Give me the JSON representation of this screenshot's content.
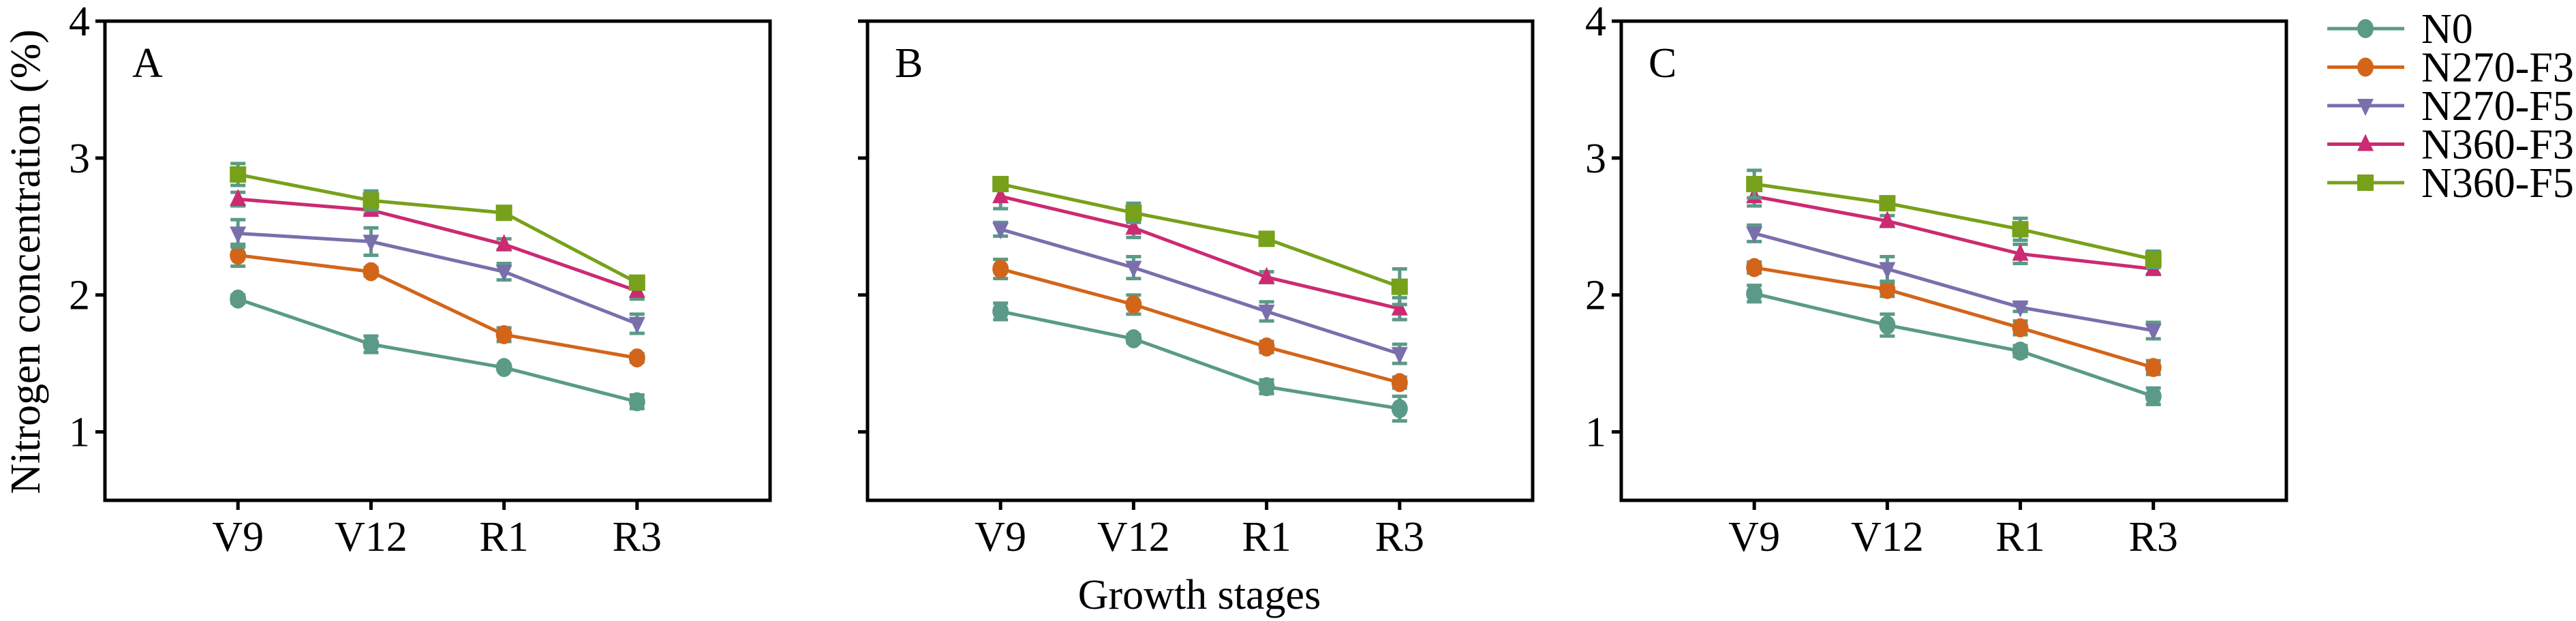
{
  "chart_data": [
    {
      "type": "line",
      "panel_label": "A",
      "categories": [
        "V9",
        "V12",
        "R1",
        "R3"
      ],
      "ylim": [
        0.5,
        4
      ],
      "yticks": [
        1,
        2,
        3,
        4
      ],
      "series": [
        {
          "name": "N0",
          "values": [
            1.97,
            1.64,
            1.47,
            1.22
          ],
          "errors": [
            0.03,
            0.06,
            0.02,
            0.05
          ]
        },
        {
          "name": "N270-F3",
          "values": [
            2.29,
            2.17,
            1.71,
            1.54
          ],
          "errors": [
            0.08,
            0.03,
            0.05,
            0.03
          ]
        },
        {
          "name": "N270-F5",
          "values": [
            2.45,
            2.39,
            2.17,
            1.79
          ],
          "errors": [
            0.1,
            0.1,
            0.06,
            0.07
          ]
        },
        {
          "name": "N360-F3",
          "values": [
            2.7,
            2.62,
            2.37,
            2.03
          ],
          "errors": [
            0.05,
            0.03,
            0.04,
            0.06
          ]
        },
        {
          "name": "N360-F5",
          "values": [
            2.88,
            2.69,
            2.6,
            2.09
          ],
          "errors": [
            0.08,
            0.07,
            0.03,
            0.03
          ]
        }
      ]
    },
    {
      "type": "line",
      "panel_label": "B",
      "categories": [
        "V9",
        "V12",
        "R1",
        "R3"
      ],
      "ylim": [
        0.5,
        4
      ],
      "yticks": [
        1,
        2,
        3,
        4
      ],
      "series": [
        {
          "name": "N0",
          "values": [
            1.88,
            1.68,
            1.33,
            1.17
          ],
          "errors": [
            0.06,
            0.03,
            0.05,
            0.09
          ]
        },
        {
          "name": "N270-F3",
          "values": [
            2.19,
            1.93,
            1.62,
            1.36
          ],
          "errors": [
            0.07,
            0.07,
            0.04,
            0.04
          ]
        },
        {
          "name": "N270-F5",
          "values": [
            2.48,
            2.2,
            1.88,
            1.57
          ],
          "errors": [
            0.05,
            0.08,
            0.07,
            0.07
          ]
        },
        {
          "name": "N360-F3",
          "values": [
            2.72,
            2.49,
            2.13,
            1.9
          ],
          "errors": [
            0.09,
            0.07,
            0.04,
            0.08
          ]
        },
        {
          "name": "N360-F5",
          "values": [
            2.81,
            2.6,
            2.41,
            2.06
          ],
          "errors": [
            0.04,
            0.07,
            0.03,
            0.13
          ]
        }
      ]
    },
    {
      "type": "line",
      "panel_label": "C",
      "categories": [
        "V9",
        "V12",
        "R1",
        "R3"
      ],
      "ylim": [
        0.5,
        4
      ],
      "yticks": [
        1,
        2,
        3,
        4
      ],
      "series": [
        {
          "name": "N0",
          "values": [
            2.01,
            1.78,
            1.59,
            1.26
          ],
          "errors": [
            0.06,
            0.08,
            0.04,
            0.06
          ]
        },
        {
          "name": "N270-F3",
          "values": [
            2.2,
            2.04,
            1.76,
            1.47
          ],
          "errors": [
            0.04,
            0.05,
            0.05,
            0.05
          ]
        },
        {
          "name": "N270-F5",
          "values": [
            2.45,
            2.19,
            1.91,
            1.74
          ],
          "errors": [
            0.06,
            0.09,
            0.03,
            0.06
          ]
        },
        {
          "name": "N360-F3",
          "values": [
            2.72,
            2.54,
            2.3,
            2.19
          ],
          "errors": [
            0.07,
            0.04,
            0.07,
            0.04
          ]
        },
        {
          "name": "N360-F5",
          "values": [
            2.81,
            2.67,
            2.48,
            2.26
          ],
          "errors": [
            0.1,
            0.04,
            0.08,
            0.06
          ]
        }
      ]
    }
  ],
  "ylabel": "Nitrogen concentration (%)",
  "xlabel": "Growth stages",
  "legend": {
    "placement": "top-right",
    "entries": [
      {
        "name": "N0",
        "marker": "circle",
        "color": "#5a9a87"
      },
      {
        "name": "N270-F3",
        "marker": "circle",
        "color": "#d2651a"
      },
      {
        "name": "N270-F5",
        "marker": "triangle-down",
        "color": "#7a6fad"
      },
      {
        "name": "N360-F3",
        "marker": "triangle-up",
        "color": "#cc2a72"
      },
      {
        "name": "N360-F5",
        "marker": "square",
        "color": "#77a11a"
      }
    ]
  },
  "error_bar_color": "#5a9a87",
  "grid": false
}
